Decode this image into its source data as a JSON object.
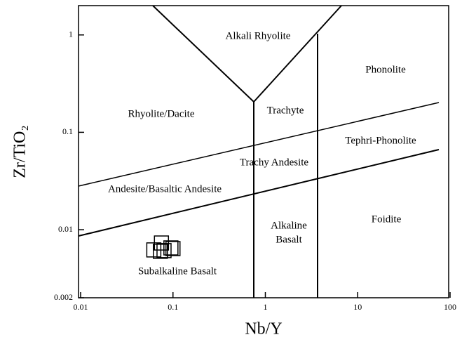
{
  "chart_data": {
    "type": "scatter",
    "x_label": "Nb/Y",
    "y_label": "Zr/TiO₂",
    "x": [
      0.062,
      0.075,
      0.08,
      0.095,
      0.1,
      0.073
    ],
    "y": [
      0.0062,
      0.0073,
      0.0061,
      0.0065,
      0.0064,
      0.006
    ],
    "color": "#000000",
    "xlim": [
      0.01,
      100
    ],
    "ylim": [
      0.002,
      2
    ],
    "xticks": [
      0.01,
      0.1,
      1,
      10,
      100
    ],
    "yticks": [
      0.002,
      0.01,
      0.1,
      1
    ],
    "log_x": true,
    "log_y": true,
    "annotations": [
      "Alkali Rhyolite",
      "Phonolite",
      "Rhyolite/Dacite",
      "Trachyte",
      "Tephri-Phonolite",
      "Trachy Andesite",
      "Andesite/Basaltic Andesite",
      "Alkaline",
      "Basalt",
      "Foidite",
      "Subalkaline Basalt"
    ]
  }
}
